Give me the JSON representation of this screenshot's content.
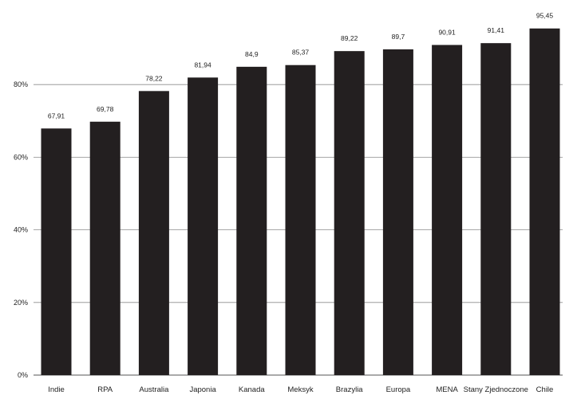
{
  "chart_data": {
    "type": "bar",
    "title": "",
    "xlabel": "",
    "ylabel": "",
    "categories": [
      "Indie",
      "RPA",
      "Australia",
      "Japonia",
      "Kanada",
      "Meksyk",
      "Brazylia",
      "Europa",
      "MENA",
      "Stany Zjednoczone",
      "Chile"
    ],
    "values": [
      67.91,
      69.78,
      78.22,
      81.94,
      84.9,
      85.37,
      89.22,
      89.7,
      90.91,
      91.41,
      95.45
    ],
    "value_labels": [
      "67,91",
      "69,78",
      "78,22",
      "81,94",
      "84,9",
      "85,37",
      "89,22",
      "89,7",
      "90,91",
      "91,41",
      "95,45"
    ],
    "ylim": [
      0,
      100
    ],
    "yticks": [
      0,
      20,
      40,
      60,
      80
    ],
    "ytick_labels": [
      "0%",
      "20%",
      "40%",
      "60%",
      "80%"
    ],
    "grid": true,
    "legend": "none",
    "bar_color": "#231f20",
    "grid_color": "#8c8c8c"
  }
}
